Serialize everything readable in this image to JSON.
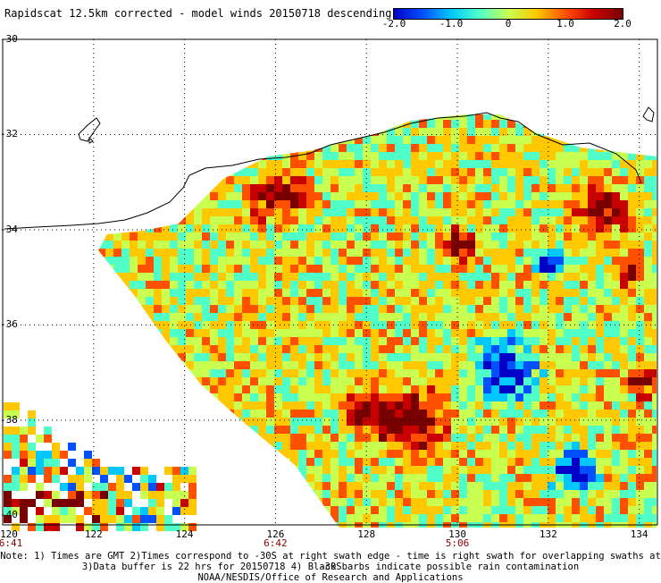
{
  "title": "Rapidscat 12.5km corrected - model winds 20150718 descending",
  "colorbar": {
    "ticks": [
      "-2.0",
      "-1.0",
      "0",
      "1.0",
      "2.0"
    ],
    "tick_values": [
      -2.0,
      -1.0,
      0,
      1.0,
      2.0
    ],
    "range": [
      -2.0,
      2.0
    ],
    "colors": [
      "#0000c8",
      "#0050ff",
      "#00c8ff",
      "#50ffc8",
      "#c8ff50",
      "#ffc800",
      "#ff5000",
      "#c80000",
      "#780000"
    ]
  },
  "axes": {
    "lon_ticks": [
      "120",
      "122",
      "124",
      "126",
      "128",
      "130",
      "132",
      "134"
    ],
    "lat_ticks": [
      "-30",
      "-32",
      "-34",
      "-36",
      "-38",
      "-40"
    ],
    "lon_range": [
      120,
      135
    ],
    "lat_range": [
      -40,
      -30
    ]
  },
  "swath_times": [
    "6:41",
    "6:42",
    "5:06"
  ],
  "notes": [
    "Note: 1) Times are GMT 2)Times correspond to -30S at right swath edge - time is right swath for overlapping swaths at -30S",
    "3)Data buffer is 22 hrs for 20150718 4) Black barbs indicate possible rain contamination",
    "NOAA/NESDIS/Office of Research and Applications"
  ]
}
